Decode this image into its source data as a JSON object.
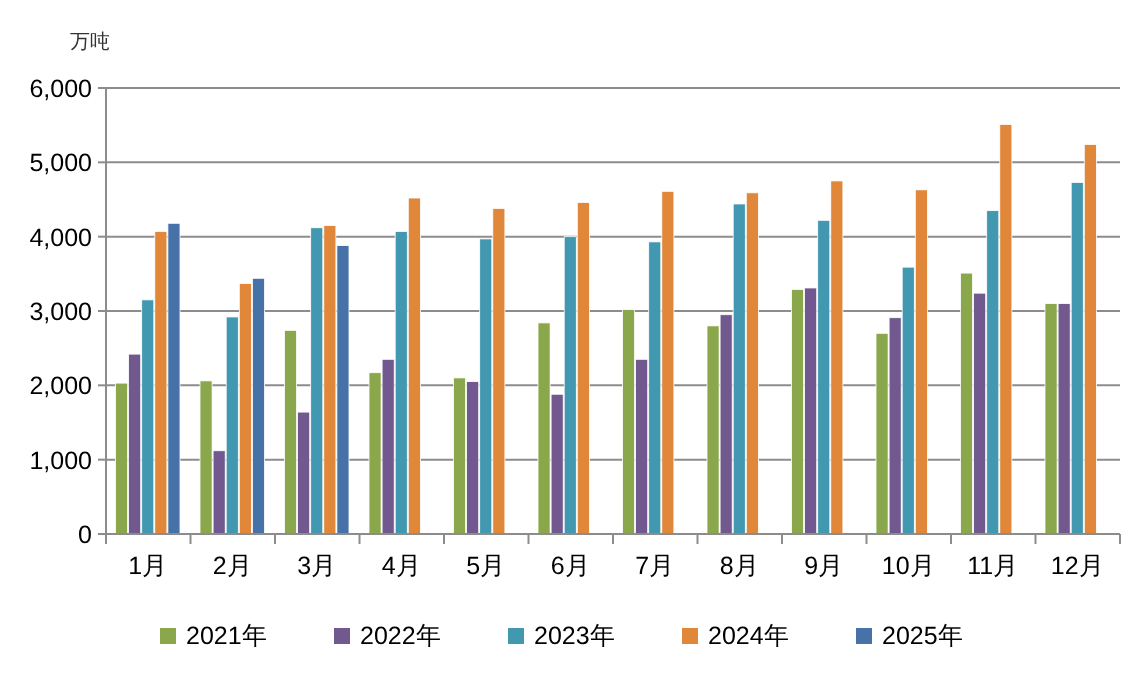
{
  "chart_data": {
    "type": "bar",
    "ylabel": "万吨",
    "categories": [
      "1月",
      "2月",
      "3月",
      "4月",
      "5月",
      "6月",
      "7月",
      "8月",
      "9月",
      "10月",
      "11月",
      "12月"
    ],
    "series": [
      {
        "name": "2021年",
        "color": "#8aa84b",
        "values": [
          2030,
          2060,
          2740,
          2170,
          2100,
          2840,
          3020,
          2800,
          3290,
          2700,
          3510,
          3100
        ]
      },
      {
        "name": "2022年",
        "color": "#71598f",
        "values": [
          2420,
          1120,
          1640,
          2350,
          2050,
          1880,
          2350,
          2950,
          3310,
          2910,
          3240,
          3100
        ]
      },
      {
        "name": "2023年",
        "color": "#4298b0",
        "values": [
          3150,
          2920,
          4120,
          4070,
          3970,
          4000,
          3930,
          4440,
          4220,
          3590,
          4350,
          4730
        ]
      },
      {
        "name": "2024年",
        "color": "#e0873a",
        "values": [
          4070,
          3370,
          4150,
          4520,
          4380,
          4460,
          4610,
          4590,
          4750,
          4630,
          5510,
          5240
        ]
      },
      {
        "name": "2025年",
        "color": "#4672a8",
        "values": [
          4180,
          3440,
          3880,
          null,
          null,
          null,
          null,
          null,
          null,
          null,
          null,
          null
        ]
      }
    ],
    "ylim": [
      0,
      6000
    ],
    "yticks": [
      0,
      {
        "value": 1000,
        "label": "1,000"
      },
      {
        "value": 2000,
        "label": "2,000"
      },
      {
        "value": 3000,
        "label": "3,000"
      },
      {
        "value": 4000,
        "label": "4,000"
      },
      {
        "value": 5000,
        "label": "5,000"
      },
      {
        "value": 6000,
        "label": "6,000"
      }
    ],
    "grid": "y",
    "legend": "bottom"
  }
}
